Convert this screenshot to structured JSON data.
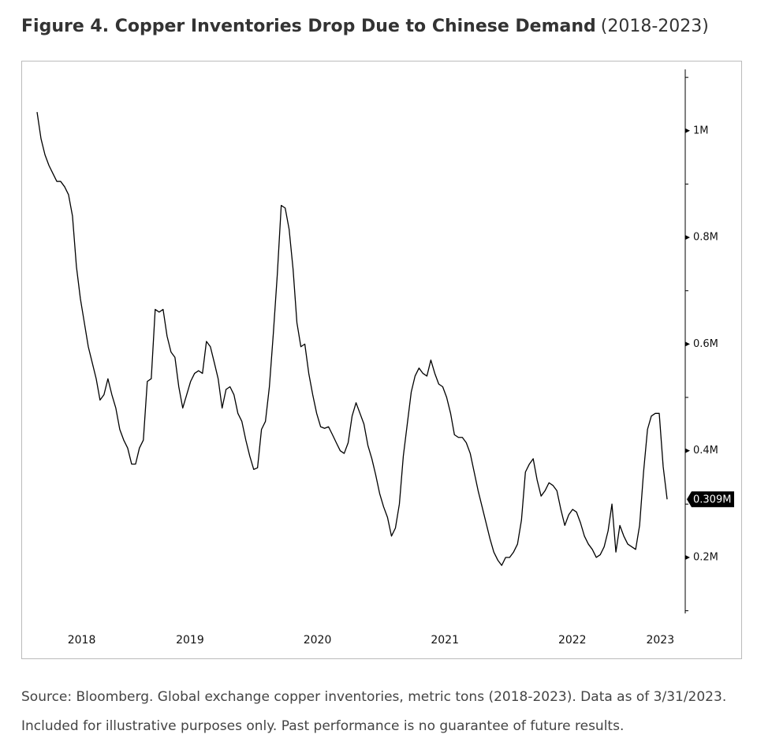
{
  "chart_data": {
    "type": "line",
    "title": "Figure 4. Copper Inventories Drop Due to Chinese Demand",
    "subtitle": "(2018-2023)",
    "source": "Source: Bloomberg. Global exchange copper inventories, metric tons (2018-2023). Data as of 3/31/2023.",
    "note": "Included for illustrative purposes only. Past performance is no guarantee of future results.",
    "color": "#000000",
    "x": [
      2018.3,
      2018.331,
      2018.362,
      2018.393,
      2018.424,
      2018.455,
      2018.485,
      2018.516,
      2018.547,
      2018.578,
      2018.609,
      2018.64,
      2018.671,
      2018.702,
      2018.733,
      2018.764,
      2018.794,
      2018.825,
      2018.856,
      2018.887,
      2018.918,
      2018.949,
      2018.98,
      2019.011,
      2019.042,
      2019.073,
      2019.103,
      2019.134,
      2019.165,
      2019.196,
      2019.227,
      2019.258,
      2019.289,
      2019.32,
      2019.351,
      2019.382,
      2019.412,
      2019.443,
      2019.474,
      2019.505,
      2019.536,
      2019.567,
      2019.598,
      2019.629,
      2019.66,
      2019.691,
      2019.721,
      2019.752,
      2019.783,
      2019.814,
      2019.845,
      2019.876,
      2019.907,
      2019.938,
      2019.969,
      2020.0,
      2020.03,
      2020.061,
      2020.092,
      2020.123,
      2020.154,
      2020.185,
      2020.216,
      2020.247,
      2020.278,
      2020.309,
      2020.339,
      2020.37,
      2020.401,
      2020.432,
      2020.463,
      2020.494,
      2020.525,
      2020.556,
      2020.587,
      2020.618,
      2020.648,
      2020.679,
      2020.71,
      2020.741,
      2020.772,
      2020.803,
      2020.834,
      2020.865,
      2020.896,
      2020.927,
      2020.957,
      2020.988,
      2021.019,
      2021.05,
      2021.081,
      2021.112,
      2021.143,
      2021.174,
      2021.205,
      2021.236,
      2021.266,
      2021.297,
      2021.328,
      2021.359,
      2021.39,
      2021.421,
      2021.452,
      2021.483,
      2021.514,
      2021.545,
      2021.575,
      2021.606,
      2021.637,
      2021.668,
      2021.699,
      2021.73,
      2021.761,
      2021.792,
      2021.823,
      2021.854,
      2021.884,
      2021.915,
      2021.946,
      2021.977,
      2022.008,
      2022.039,
      2022.07,
      2022.101,
      2022.132,
      2022.163,
      2022.193,
      2022.224,
      2022.255,
      2022.286,
      2022.317,
      2022.348,
      2022.379,
      2022.41,
      2022.441,
      2022.472,
      2022.502,
      2022.533,
      2022.564,
      2022.595,
      2022.626,
      2022.657,
      2022.688,
      2022.719,
      2022.75,
      2022.781,
      2022.811,
      2022.842,
      2022.873,
      2022.904,
      2022.935,
      2022.966,
      2022.997,
      2023.028,
      2023.059,
      2023.09,
      2023.12,
      2023.151,
      2023.182,
      2023.213,
      2023.244
    ],
    "values": [
      1035000,
      985000,
      955000,
      935000,
      920000,
      905000,
      905000,
      895000,
      880000,
      840000,
      745000,
      685000,
      640000,
      595000,
      565000,
      535000,
      495000,
      505000,
      535000,
      505000,
      480000,
      440000,
      420000,
      405000,
      375000,
      375000,
      405000,
      420000,
      530000,
      535000,
      665000,
      660000,
      665000,
      615000,
      585000,
      575000,
      520000,
      480000,
      505000,
      530000,
      545000,
      550000,
      545000,
      605000,
      595000,
      565000,
      535000,
      480000,
      515000,
      520000,
      505000,
      470000,
      455000,
      420000,
      390000,
      365000,
      368000,
      440000,
      455000,
      520000,
      620000,
      730000,
      860000,
      855000,
      815000,
      740000,
      640000,
      595000,
      600000,
      545000,
      505000,
      470000,
      445000,
      442000,
      445000,
      430000,
      415000,
      400000,
      395000,
      415000,
      465000,
      490000,
      470000,
      450000,
      410000,
      385000,
      355000,
      320000,
      295000,
      275000,
      240000,
      255000,
      300000,
      390000,
      450000,
      510000,
      540000,
      555000,
      545000,
      540000,
      570000,
      545000,
      525000,
      520000,
      500000,
      470000,
      430000,
      425000,
      425000,
      415000,
      395000,
      360000,
      325000,
      295000,
      265000,
      235000,
      210000,
      195000,
      185000,
      200000,
      200000,
      210000,
      225000,
      270000,
      360000,
      375000,
      385000,
      345000,
      315000,
      325000,
      340000,
      335000,
      325000,
      290000,
      260000,
      280000,
      290000,
      285000,
      265000,
      240000,
      225000,
      215000,
      200000,
      205000,
      220000,
      250000,
      300000,
      210000,
      260000,
      240000,
      225000,
      220000,
      215000,
      260000,
      360000,
      440000,
      465000,
      470000,
      470000,
      370000,
      309000
    ],
    "xlim": [
      2018.3,
      2023.25
    ],
    "xticks": [
      {
        "value": 2018.65,
        "label": "2018"
      },
      {
        "value": 2019.5,
        "label": "2019"
      },
      {
        "value": 2020.5,
        "label": "2020"
      },
      {
        "value": 2021.5,
        "label": "2021"
      },
      {
        "value": 2022.5,
        "label": "2022"
      },
      {
        "value": 2023.19,
        "label": "2023"
      }
    ],
    "ylim": [
      95000,
      1115000
    ],
    "yticks": [
      {
        "value": 200000,
        "label": "0.2M"
      },
      {
        "value": 400000,
        "label": "0.4M"
      },
      {
        "value": 600000,
        "label": "0.6M"
      },
      {
        "value": 800000,
        "label": "0.8M"
      },
      {
        "value": 1000000,
        "label": "1M"
      }
    ],
    "minor_yticks": [
      100000,
      300000,
      500000,
      700000,
      900000,
      1100000
    ],
    "annotations": [
      {
        "label": "0.309M",
        "value": 309000
      }
    ]
  }
}
